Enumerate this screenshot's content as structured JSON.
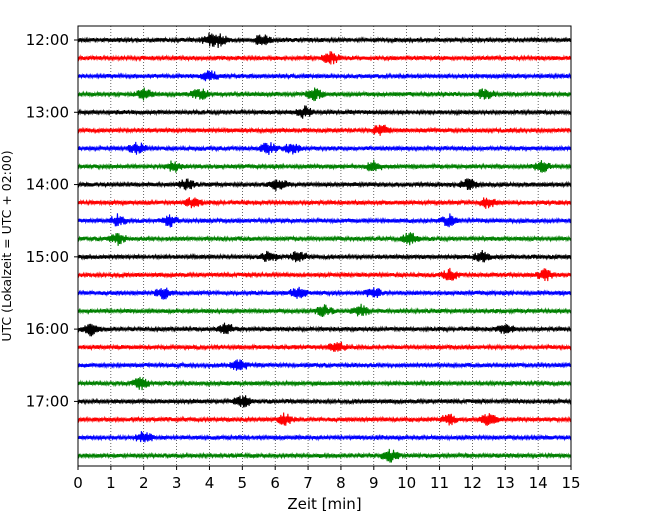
{
  "chart_data": {
    "type": "line",
    "subtype": "helicorder-seismogram",
    "title": "",
    "xlabel": "Zeit  [min]",
    "ylabel": "UTC (Lokalzeit = UTC + 02:00)",
    "xlim": [
      0,
      15
    ],
    "x_ticks": [
      "0",
      "1",
      "2",
      "3",
      "4",
      "5",
      "6",
      "7",
      "8",
      "9",
      "10",
      "11",
      "12",
      "13",
      "14",
      "15"
    ],
    "y_tick_labels": [
      "12:00",
      "13:00",
      "14:00",
      "15:00",
      "16:00",
      "17:00"
    ],
    "grid": "vertical dotted at every minute",
    "legend": "none",
    "trace_interval_minutes": 15,
    "trace_colors": [
      "#000000",
      "#ff0000",
      "#0000ff",
      "#008000"
    ],
    "traces": [
      {
        "start": "12:00",
        "color": "#000000",
        "events_min": [
          4.0,
          4.3,
          5.6
        ]
      },
      {
        "start": "12:15",
        "color": "#ff0000",
        "events_min": [
          7.7
        ]
      },
      {
        "start": "12:30",
        "color": "#0000ff",
        "events_min": [
          4.0
        ]
      },
      {
        "start": "12:45",
        "color": "#008000",
        "events_min": [
          2.0,
          3.7,
          7.2,
          12.4
        ]
      },
      {
        "start": "13:00",
        "color": "#000000",
        "events_min": [
          6.9
        ]
      },
      {
        "start": "13:15",
        "color": "#ff0000",
        "events_min": [
          9.2
        ]
      },
      {
        "start": "13:30",
        "color": "#0000ff",
        "events_min": [
          1.8,
          5.8,
          6.5
        ]
      },
      {
        "start": "13:45",
        "color": "#008000",
        "events_min": [
          2.9,
          9.0,
          14.1
        ]
      },
      {
        "start": "14:00",
        "color": "#000000",
        "events_min": [
          3.3,
          6.1,
          11.9
        ]
      },
      {
        "start": "14:15",
        "color": "#ff0000",
        "events_min": [
          3.5,
          12.5
        ]
      },
      {
        "start": "14:30",
        "color": "#0000ff",
        "events_min": [
          1.2,
          2.8,
          11.3
        ]
      },
      {
        "start": "14:45",
        "color": "#008000",
        "events_min": [
          1.2,
          10.1
        ]
      },
      {
        "start": "15:00",
        "color": "#000000",
        "events_min": [
          5.8,
          6.7,
          12.3
        ]
      },
      {
        "start": "15:15",
        "color": "#ff0000",
        "events_min": [
          11.3,
          14.2
        ]
      },
      {
        "start": "15:30",
        "color": "#0000ff",
        "events_min": [
          2.6,
          6.7,
          9.0
        ]
      },
      {
        "start": "15:45",
        "color": "#008000",
        "events_min": [
          7.5,
          8.6
        ]
      },
      {
        "start": "16:00",
        "color": "#000000",
        "events_min": [
          0.4,
          4.5,
          13.0
        ]
      },
      {
        "start": "16:15",
        "color": "#ff0000",
        "events_min": [
          7.9
        ]
      },
      {
        "start": "16:30",
        "color": "#0000ff",
        "events_min": [
          4.9
        ]
      },
      {
        "start": "16:45",
        "color": "#008000",
        "events_min": [
          1.9
        ]
      },
      {
        "start": "17:00",
        "color": "#000000",
        "events_min": [
          5.0
        ]
      },
      {
        "start": "17:15",
        "color": "#ff0000",
        "events_min": [
          6.3,
          11.3,
          12.5
        ]
      },
      {
        "start": "17:30",
        "color": "#0000ff",
        "events_min": [
          2.0
        ]
      },
      {
        "start": "17:45",
        "color": "#008000",
        "events_min": [
          9.5
        ]
      }
    ]
  }
}
